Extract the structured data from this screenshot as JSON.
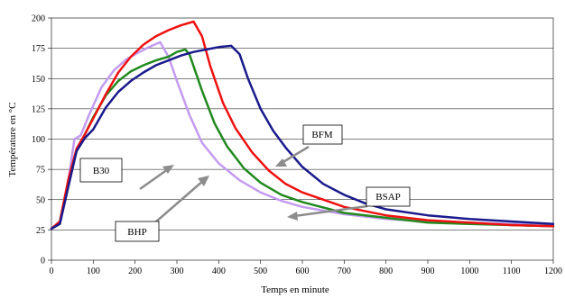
{
  "chart_data": {
    "type": "line",
    "title": "",
    "xlabel": "Temps en minute",
    "ylabel": "Température en °C",
    "xlim": [
      0,
      1200
    ],
    "ylim": [
      0,
      200
    ],
    "xticks": [
      0,
      100,
      200,
      300,
      400,
      500,
      600,
      700,
      800,
      900,
      1000,
      1100,
      1200
    ],
    "yticks": [
      0,
      25,
      50,
      75,
      100,
      125,
      150,
      175,
      200
    ],
    "grid": "horizontal",
    "legend": "none",
    "series": [
      {
        "name": "B30",
        "color": "#c39bf0",
        "points": [
          [
            0,
            26
          ],
          [
            20,
            30
          ],
          [
            40,
            65
          ],
          [
            55,
            100
          ],
          [
            70,
            103
          ],
          [
            90,
            120
          ],
          [
            120,
            143
          ],
          [
            150,
            157
          ],
          [
            180,
            166
          ],
          [
            210,
            172
          ],
          [
            240,
            177
          ],
          [
            260,
            180
          ],
          [
            280,
            168
          ],
          [
            300,
            148
          ],
          [
            330,
            120
          ],
          [
            360,
            97
          ],
          [
            400,
            80
          ],
          [
            450,
            66
          ],
          [
            500,
            56
          ],
          [
            550,
            49
          ],
          [
            600,
            44
          ],
          [
            700,
            38
          ],
          [
            800,
            34
          ],
          [
            900,
            32
          ],
          [
            1000,
            31
          ],
          [
            1100,
            30
          ],
          [
            1200,
            29
          ]
        ]
      },
      {
        "name": "BHP",
        "color": "#22891f",
        "points": [
          [
            0,
            26
          ],
          [
            20,
            30
          ],
          [
            40,
            62
          ],
          [
            60,
            90
          ],
          [
            80,
            104
          ],
          [
            100,
            118
          ],
          [
            130,
            136
          ],
          [
            160,
            148
          ],
          [
            190,
            156
          ],
          [
            220,
            161
          ],
          [
            250,
            165
          ],
          [
            280,
            168
          ],
          [
            300,
            172
          ],
          [
            320,
            174
          ],
          [
            330,
            170
          ],
          [
            360,
            140
          ],
          [
            390,
            113
          ],
          [
            420,
            94
          ],
          [
            460,
            76
          ],
          [
            500,
            64
          ],
          [
            550,
            54
          ],
          [
            600,
            48
          ],
          [
            700,
            39
          ],
          [
            800,
            35
          ],
          [
            900,
            31
          ],
          [
            1000,
            30
          ],
          [
            1100,
            29
          ],
          [
            1200,
            28
          ]
        ]
      },
      {
        "name": "BSAP",
        "color": "#ee1111",
        "points": [
          [
            0,
            26
          ],
          [
            20,
            32
          ],
          [
            40,
            66
          ],
          [
            60,
            92
          ],
          [
            80,
            104
          ],
          [
            100,
            117
          ],
          [
            130,
            137
          ],
          [
            160,
            155
          ],
          [
            190,
            168
          ],
          [
            220,
            178
          ],
          [
            250,
            185
          ],
          [
            280,
            190
          ],
          [
            310,
            194
          ],
          [
            340,
            197
          ],
          [
            360,
            185
          ],
          [
            380,
            160
          ],
          [
            410,
            130
          ],
          [
            440,
            109
          ],
          [
            480,
            89
          ],
          [
            520,
            74
          ],
          [
            560,
            63
          ],
          [
            600,
            56
          ],
          [
            700,
            44
          ],
          [
            800,
            37
          ],
          [
            900,
            33
          ],
          [
            1000,
            31
          ],
          [
            1100,
            29
          ],
          [
            1200,
            28
          ]
        ]
      },
      {
        "name": "BFM",
        "color": "#1a1a8c",
        "points": [
          [
            0,
            26
          ],
          [
            20,
            30
          ],
          [
            40,
            60
          ],
          [
            60,
            90
          ],
          [
            80,
            101
          ],
          [
            100,
            108
          ],
          [
            130,
            126
          ],
          [
            160,
            139
          ],
          [
            190,
            148
          ],
          [
            220,
            155
          ],
          [
            250,
            161
          ],
          [
            280,
            165
          ],
          [
            310,
            169
          ],
          [
            340,
            172
          ],
          [
            370,
            174
          ],
          [
            400,
            176
          ],
          [
            430,
            177
          ],
          [
            450,
            170
          ],
          [
            470,
            150
          ],
          [
            500,
            125
          ],
          [
            530,
            107
          ],
          [
            560,
            93
          ],
          [
            600,
            77
          ],
          [
            650,
            63
          ],
          [
            700,
            54
          ],
          [
            750,
            47
          ],
          [
            800,
            42
          ],
          [
            900,
            37
          ],
          [
            1000,
            34
          ],
          [
            1100,
            32
          ],
          [
            1200,
            30
          ]
        ]
      }
    ],
    "annotations": [
      "B30",
      "BHP",
      "BFM",
      "BSAP"
    ]
  }
}
